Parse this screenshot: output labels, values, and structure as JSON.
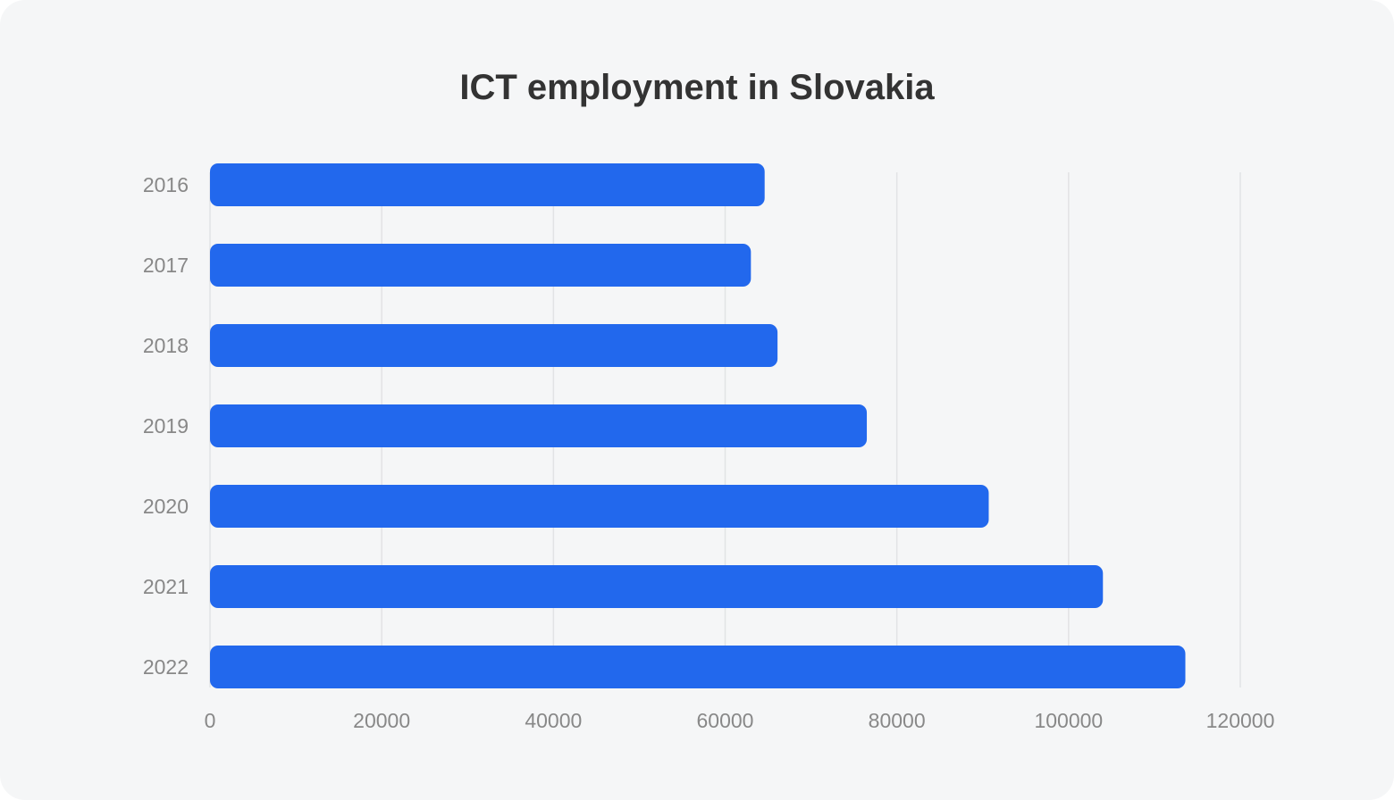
{
  "chart_data": {
    "type": "bar",
    "orientation": "horizontal",
    "title": "ICT employment in Slovakia",
    "xlabel": "",
    "ylabel": "",
    "categories": [
      "2016",
      "2017",
      "2018",
      "2019",
      "2020",
      "2021",
      "2022"
    ],
    "values": [
      64600,
      63000,
      66100,
      76500,
      90700,
      104000,
      113600
    ],
    "xlim": [
      0,
      120000
    ],
    "xticks": [
      0,
      20000,
      40000,
      60000,
      80000,
      100000,
      120000
    ],
    "grid": true,
    "bar_color": "#2268ED",
    "background_color": "#f5f6f7"
  }
}
